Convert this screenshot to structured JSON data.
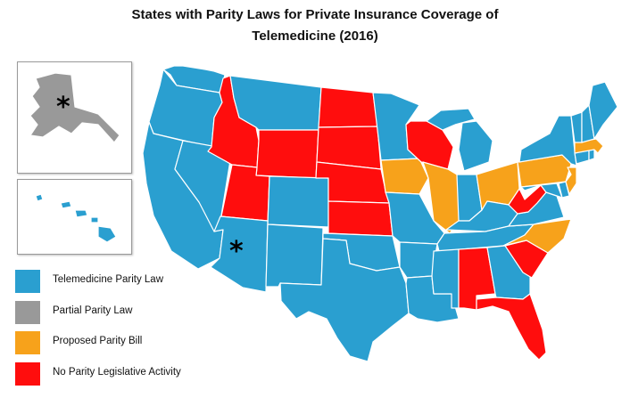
{
  "title_line1": "States with Parity Laws for Private Insurance Coverage of",
  "title_line2": "Telemedicine (2016)",
  "colors": {
    "parity_law": "#2a9fd0",
    "partial_parity": "#999999",
    "proposed_bill": "#f7a21b",
    "no_activity": "#ff0d0d",
    "border": "#ffffff"
  },
  "legend": [
    {
      "label": "Telemedicine Parity Law",
      "color": "#2a9fd0"
    },
    {
      "label": "Partial Parity Law",
      "color": "#999999"
    },
    {
      "label": "Proposed Parity Bill",
      "color": "#f7a21b"
    },
    {
      "label": "No Parity Legislative Activity",
      "color": "#ff0d0d"
    }
  ],
  "asterisk": "*",
  "states": {
    "parity_law": [
      "WA",
      "OR",
      "CA",
      "NV",
      "MT",
      "CO",
      "NM",
      "AZ",
      "TX",
      "OK",
      "MO",
      "AR",
      "LA",
      "MS",
      "MN",
      "MI",
      "IN",
      "KY",
      "TN",
      "GA",
      "VA",
      "MD",
      "DE",
      "NY",
      "VT",
      "NH",
      "ME",
      "CT",
      "RI",
      "HI"
    ],
    "partial_parity": [
      "AK"
    ],
    "proposed_bill": [
      "IA",
      "IL",
      "OH",
      "PA",
      "NJ",
      "MA",
      "NC"
    ],
    "no_activity": [
      "ID",
      "WY",
      "UT",
      "ND",
      "SD",
      "NE",
      "KS",
      "WI",
      "WV",
      "AL",
      "FL",
      "SC"
    ]
  }
}
